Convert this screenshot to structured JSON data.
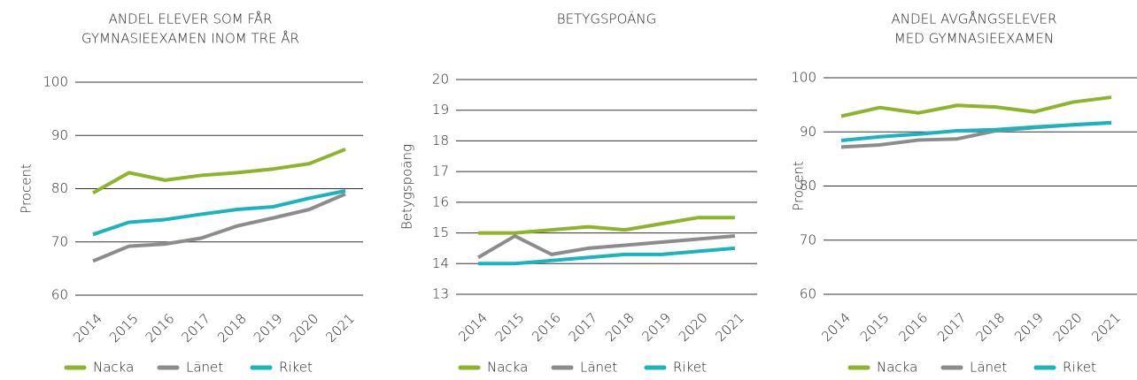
{
  "chart_data": [
    {
      "type": "line",
      "title": [
        "ANDEL ELEVER SOM FÅR",
        "GYMNASIEEXAMEN INOM TRE ÅR"
      ],
      "y_label": "Procent",
      "categories": [
        "2014",
        "2015",
        "2016",
        "2017",
        "2018",
        "2019",
        "2020",
        "2021"
      ],
      "ylim": [
        60,
        100
      ],
      "yticks": [
        60,
        70,
        80,
        90,
        100
      ],
      "grid": true,
      "series": [
        {
          "name": "Nacka",
          "color": "#8db42b",
          "values": [
            79.2,
            83.0,
            81.6,
            82.5,
            83.0,
            83.7,
            84.7,
            87.4
          ]
        },
        {
          "name": "Länet",
          "color": "#8c8c8c",
          "values": [
            66.4,
            69.2,
            69.6,
            70.7,
            73.0,
            74.5,
            76.1,
            79.0
          ]
        },
        {
          "name": "Riket",
          "color": "#1ab3c0",
          "values": [
            71.4,
            73.7,
            74.2,
            75.2,
            76.1,
            76.6,
            78.2,
            79.6
          ]
        }
      ]
    },
    {
      "type": "line",
      "title": [
        "BETYGSPOÄNG"
      ],
      "y_label": "Betygspoäng",
      "categories": [
        "2014",
        "2015",
        "2016",
        "2017",
        "2018",
        "2019",
        "2020",
        "2021"
      ],
      "ylim": [
        13,
        20
      ],
      "yticks": [
        13,
        14,
        15,
        16,
        17,
        18,
        19,
        20
      ],
      "grid": true,
      "series": [
        {
          "name": "Nacka",
          "color": "#8db42b",
          "values": [
            15.0,
            15.0,
            15.1,
            15.2,
            15.1,
            15.3,
            15.5,
            15.5
          ]
        },
        {
          "name": "Länet",
          "color": "#8c8c8c",
          "values": [
            14.2,
            14.9,
            14.3,
            14.5,
            14.6,
            14.7,
            14.8,
            14.9
          ]
        },
        {
          "name": "Riket",
          "color": "#1ab3c0",
          "values": [
            14.0,
            14.0,
            14.1,
            14.2,
            14.3,
            14.3,
            14.4,
            14.5
          ]
        }
      ]
    },
    {
      "type": "line",
      "title": [
        "ANDEL AVGÅNGSELEVER",
        "MED GYMNASIEEXAMEN"
      ],
      "y_label": "Procent",
      "categories": [
        "2014",
        "2015",
        "2016",
        "2017",
        "2018",
        "2019",
        "2020",
        "2021"
      ],
      "ylim": [
        60,
        100
      ],
      "yticks": [
        60,
        70,
        80,
        90,
        100
      ],
      "grid": true,
      "series": [
        {
          "name": "Nacka",
          "color": "#8db42b",
          "values": [
            92.9,
            94.5,
            93.5,
            94.9,
            94.6,
            93.7,
            95.5,
            96.4
          ]
        },
        {
          "name": "Länet",
          "color": "#8c8c8c",
          "values": [
            87.2,
            87.6,
            88.5,
            88.7,
            90.2,
            90.8,
            91.3,
            91.7
          ]
        },
        {
          "name": "Riket",
          "color": "#1ab3c0",
          "values": [
            88.4,
            89.1,
            89.6,
            90.2,
            90.4,
            90.9,
            91.3,
            91.7
          ]
        }
      ]
    }
  ]
}
